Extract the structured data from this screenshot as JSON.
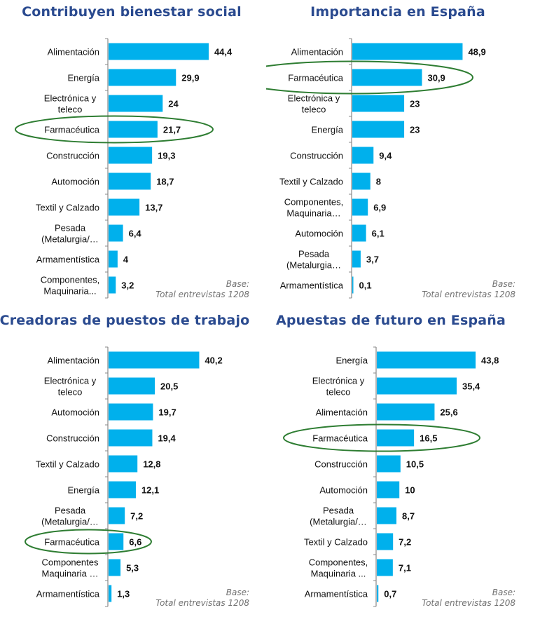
{
  "colors": {
    "bar": "#00b0ec",
    "title": "#2a4a8f",
    "highlight": "#2e7d32",
    "axis": "#888888"
  },
  "chart_data": [
    {
      "type": "bar",
      "orientation": "horizontal",
      "title": "Contribuyen bienestar social",
      "categories": [
        [
          "Alimentación"
        ],
        [
          "Energía"
        ],
        [
          "Electrónica y",
          "teleco"
        ],
        [
          "Farmacéutica"
        ],
        [
          "Construcción"
        ],
        [
          "Automoción"
        ],
        [
          "Textil y Calzado"
        ],
        [
          "Pesada",
          "(Metalurgia/…"
        ],
        [
          "Armamentística"
        ],
        [
          "Componentes,",
          "Maquinaria..."
        ]
      ],
      "values": [
        44.4,
        29.9,
        24,
        21.7,
        19.3,
        18.7,
        13.7,
        6.4,
        4,
        3.2
      ],
      "value_labels": [
        "44,4",
        "29,9",
        "24",
        "21,7",
        "19,3",
        "18,7",
        "13,7",
        "6,4",
        "4",
        "3,2"
      ],
      "highlighted_category": "Farmacéutica",
      "xlim": [
        0,
        50
      ],
      "note": [
        "Base:",
        "Total entrevistas 1208"
      ]
    },
    {
      "type": "bar",
      "orientation": "horizontal",
      "title": "Importancia en España",
      "categories": [
        [
          "Alimentación"
        ],
        [
          "Farmacéutica"
        ],
        [
          "Electrónica y",
          "teleco"
        ],
        [
          "Energía"
        ],
        [
          "Construcción"
        ],
        [
          "Textil y Calzado"
        ],
        [
          "Componentes,",
          "Maquinaria…"
        ],
        [
          "Automoción"
        ],
        [
          "Pesada",
          "(Metalurgia…"
        ],
        [
          "Armamentística"
        ]
      ],
      "values": [
        48.9,
        30.9,
        23,
        23,
        9.4,
        8,
        6.9,
        6.1,
        3.7,
        0.1
      ],
      "value_labels": [
        "48,9",
        "30,9",
        "23",
        "23",
        "9,4",
        "8",
        "6,9",
        "6,1",
        "3,7",
        "0,1"
      ],
      "highlighted_category": "Farmacéutica",
      "xlim": [
        0,
        50
      ],
      "note": [
        "Base:",
        "Total entrevistas 1208"
      ]
    },
    {
      "type": "bar",
      "orientation": "horizontal",
      "title": "Creadoras de puestos de trabajo",
      "categories": [
        [
          "Alimentación"
        ],
        [
          "Electrónica y",
          "teleco"
        ],
        [
          "Automoción"
        ],
        [
          "Construcción"
        ],
        [
          "Textil y Calzado"
        ],
        [
          "Energía"
        ],
        [
          "Pesada",
          "(Metalurgia/…"
        ],
        [
          "Farmacéutica"
        ],
        [
          "Componentes",
          "Maquinaria …"
        ],
        [
          "Armamentística"
        ]
      ],
      "values": [
        40.2,
        20.5,
        19.7,
        19.4,
        12.8,
        12.1,
        7.2,
        6.6,
        5.3,
        1.3
      ],
      "value_labels": [
        "40,2",
        "20,5",
        "19,7",
        "19,4",
        "12,8",
        "12,1",
        "7,2",
        "6,6",
        "5,3",
        "1,3"
      ],
      "highlighted_category": "Farmacéutica",
      "xlim": [
        0,
        50
      ],
      "note": [
        "Base:",
        "Total entrevistas 1208"
      ]
    },
    {
      "type": "bar",
      "orientation": "horizontal",
      "title": "Apuestas de futuro en España",
      "categories": [
        [
          "Energía"
        ],
        [
          "Electrónica y",
          "teleco"
        ],
        [
          "Alimentación"
        ],
        [
          "Farmacéutica"
        ],
        [
          "Construcción"
        ],
        [
          "Automoción"
        ],
        [
          "Pesada",
          "(Metalurgia/…"
        ],
        [
          "Textil y Calzado"
        ],
        [
          "Componentes,",
          "Maquinaria ..."
        ],
        [
          "Armamentística"
        ]
      ],
      "values": [
        43.8,
        35.4,
        25.6,
        16.5,
        10.5,
        10,
        8.7,
        7.2,
        7.1,
        0.7
      ],
      "value_labels": [
        "43,8",
        "35,4",
        "25,6",
        "16,5",
        "10,5",
        "10",
        "8,7",
        "7,2",
        "7,1",
        "0,7"
      ],
      "highlighted_category": "Farmacéutica",
      "xlim": [
        0,
        50
      ],
      "note": [
        "Base:",
        "Total entrevistas 1208"
      ]
    }
  ]
}
